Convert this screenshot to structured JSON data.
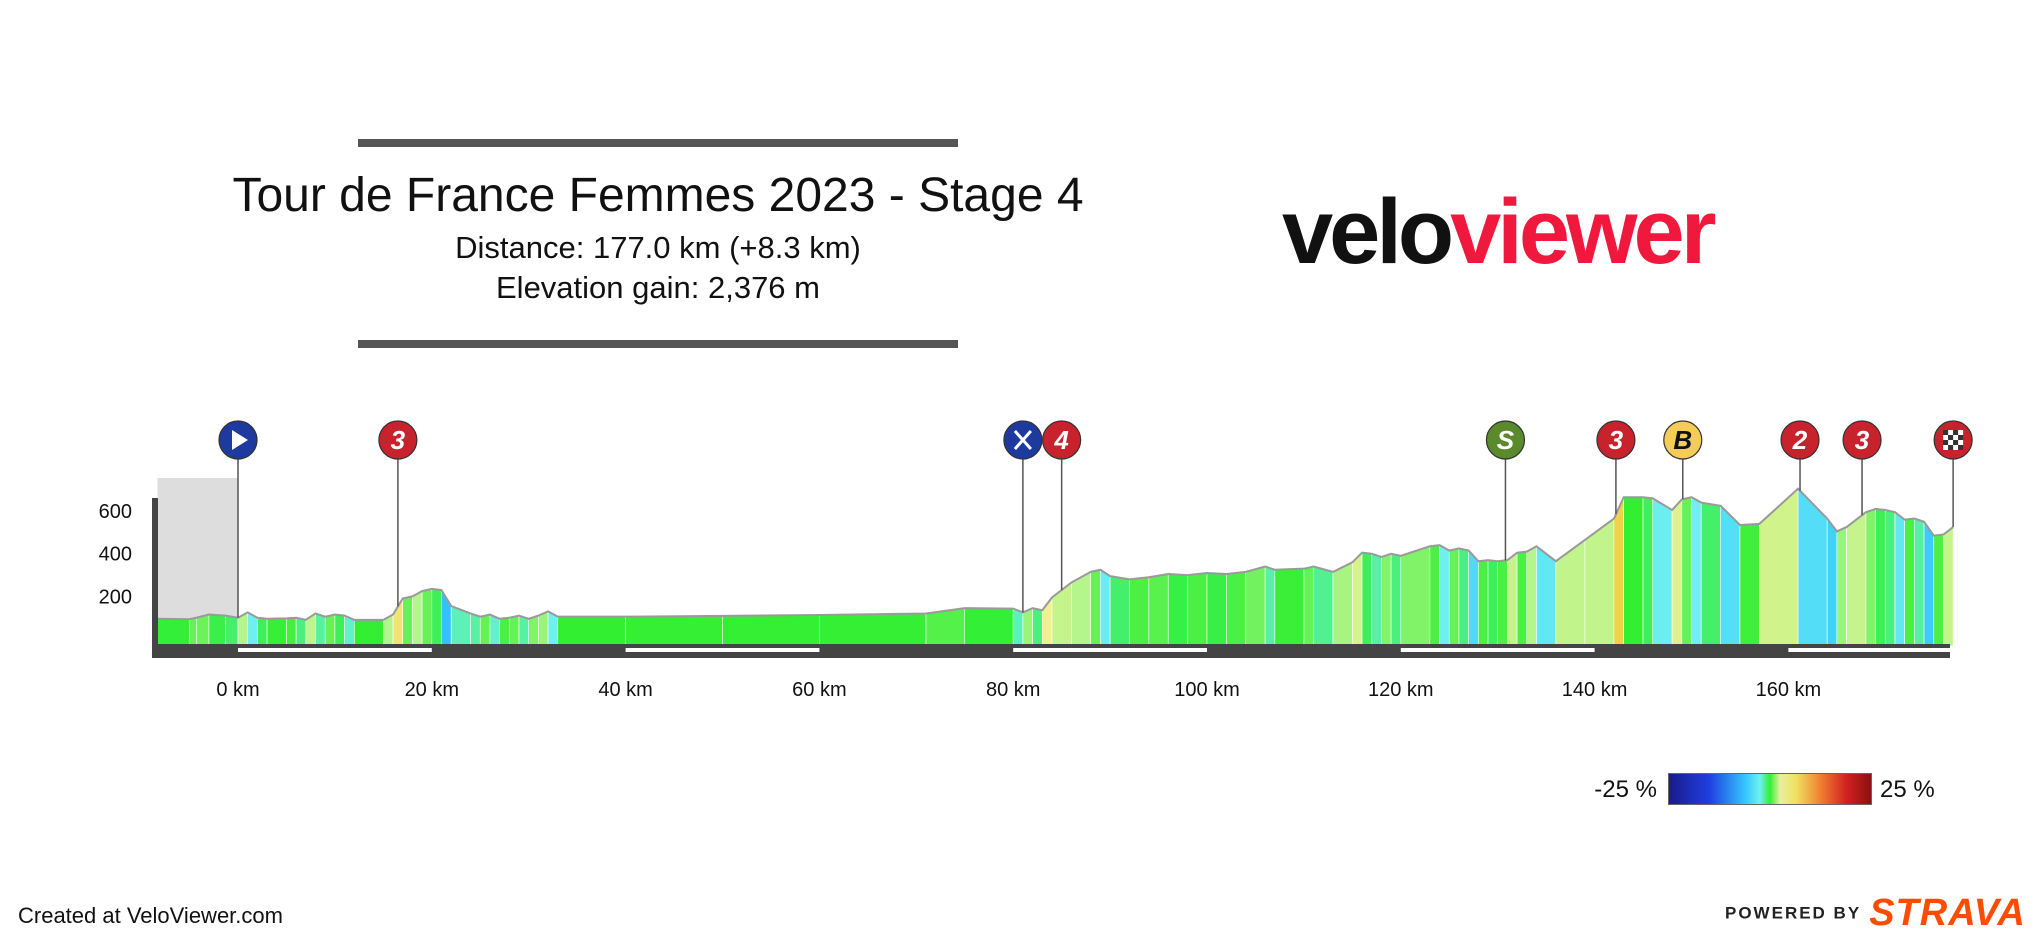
{
  "header": {
    "title": "Tour de France Femmes 2023 - Stage 4",
    "distance": "Distance: 177.0 km (+8.3 km)",
    "elevation_gain": "Elevation gain: 2,376 m"
  },
  "logo": {
    "velo": "velo",
    "viewer": "viewer"
  },
  "legend": {
    "min_label": "-25 %",
    "max_label": "25 %"
  },
  "footer": {
    "credit": "Created at VeloViewer.com",
    "powered": "POWERED BY",
    "brand": "STRAVA"
  },
  "colors": {
    "brand_red": "#f0183c",
    "strava_orange": "#fc4c02",
    "baseline": "#444444",
    "lead_in": "#dddddd"
  },
  "chart_data": {
    "type": "area",
    "title": "Tour de France Femmes 2023 - Stage 4",
    "xlabel": "",
    "ylabel": "",
    "x_unit": "km",
    "xlim": [
      -8.3,
      177
    ],
    "ylim": [
      0,
      750
    ],
    "y_ticks": [
      200,
      400,
      600
    ],
    "x_ticks": [
      0,
      20,
      40,
      60,
      80,
      100,
      120,
      140,
      160
    ],
    "x_tick_labels": [
      "0 km",
      "20 km",
      "40 km",
      "60 km",
      "80 km",
      "100 km",
      "120 km",
      "140 km",
      "160 km"
    ],
    "lead_in_km": 8.3,
    "profile": [
      [
        -8.3,
        90
      ],
      [
        -5,
        88
      ],
      [
        -4.3,
        95
      ],
      [
        -3,
        110
      ],
      [
        -1.3,
        105
      ],
      [
        0,
        95
      ],
      [
        1,
        120
      ],
      [
        2,
        95
      ],
      [
        3,
        90
      ],
      [
        5,
        92
      ],
      [
        6,
        95
      ],
      [
        7,
        85
      ],
      [
        8,
        115
      ],
      [
        9,
        100
      ],
      [
        10,
        110
      ],
      [
        11,
        105
      ],
      [
        12,
        85
      ],
      [
        15,
        85
      ],
      [
        16,
        110
      ],
      [
        17,
        185
      ],
      [
        18,
        195
      ],
      [
        19,
        220
      ],
      [
        20,
        230
      ],
      [
        21,
        225
      ],
      [
        22,
        150
      ],
      [
        24,
        115
      ],
      [
        25,
        100
      ],
      [
        26,
        110
      ],
      [
        27,
        90
      ],
      [
        28,
        95
      ],
      [
        29,
        105
      ],
      [
        30,
        90
      ],
      [
        31,
        105
      ],
      [
        32,
        125
      ],
      [
        33,
        100
      ],
      [
        40,
        100
      ],
      [
        50,
        104
      ],
      [
        60,
        108
      ],
      [
        71,
        115
      ],
      [
        75,
        140
      ],
      [
        80,
        138
      ],
      [
        81,
        120
      ],
      [
        82,
        140
      ],
      [
        83,
        130
      ],
      [
        84,
        190
      ],
      [
        86,
        260
      ],
      [
        88,
        310
      ],
      [
        89,
        320
      ],
      [
        90,
        290
      ],
      [
        92,
        275
      ],
      [
        94,
        285
      ],
      [
        96,
        300
      ],
      [
        98,
        295
      ],
      [
        100,
        305
      ],
      [
        102,
        300
      ],
      [
        104,
        310
      ],
      [
        106,
        335
      ],
      [
        107,
        320
      ],
      [
        110,
        325
      ],
      [
        111,
        335
      ],
      [
        113,
        310
      ],
      [
        115,
        355
      ],
      [
        116,
        400
      ],
      [
        117,
        395
      ],
      [
        118,
        380
      ],
      [
        119,
        395
      ],
      [
        120,
        385
      ],
      [
        123,
        430
      ],
      [
        124,
        435
      ],
      [
        125,
        410
      ],
      [
        126,
        420
      ],
      [
        127,
        410
      ],
      [
        128,
        360
      ],
      [
        129,
        365
      ],
      [
        130,
        360
      ],
      [
        131,
        365
      ],
      [
        132,
        400
      ],
      [
        133,
        405
      ],
      [
        134,
        430
      ],
      [
        136,
        360
      ],
      [
        139,
        460
      ],
      [
        142,
        560
      ],
      [
        143,
        660
      ],
      [
        145,
        660
      ],
      [
        146,
        655
      ],
      [
        148,
        600
      ],
      [
        149,
        650
      ],
      [
        150,
        660
      ],
      [
        151,
        635
      ],
      [
        153,
        620
      ],
      [
        155,
        530
      ],
      [
        157,
        535
      ],
      [
        161,
        700
      ],
      [
        164,
        560
      ],
      [
        165,
        500
      ],
      [
        166,
        520
      ],
      [
        168,
        590
      ],
      [
        169,
        605
      ],
      [
        170,
        600
      ],
      [
        171,
        590
      ],
      [
        172,
        555
      ],
      [
        173,
        560
      ],
      [
        174,
        545
      ],
      [
        175,
        480
      ],
      [
        176,
        485
      ],
      [
        177,
        520
      ]
    ],
    "markers": [
      {
        "km": 0,
        "type": "start",
        "label": ""
      },
      {
        "km": 16.5,
        "type": "climb",
        "label": "3"
      },
      {
        "km": 81,
        "type": "feed",
        "label": ""
      },
      {
        "km": 85,
        "type": "climb",
        "label": "4"
      },
      {
        "km": 130.8,
        "type": "sprint",
        "label": "S"
      },
      {
        "km": 142.2,
        "type": "climb",
        "label": "3"
      },
      {
        "km": 149.1,
        "type": "bonus",
        "label": "B"
      },
      {
        "km": 161.2,
        "type": "climb",
        "label": "2"
      },
      {
        "km": 167.6,
        "type": "climb",
        "label": "3"
      },
      {
        "km": 177,
        "type": "finish",
        "label": ""
      }
    ]
  }
}
